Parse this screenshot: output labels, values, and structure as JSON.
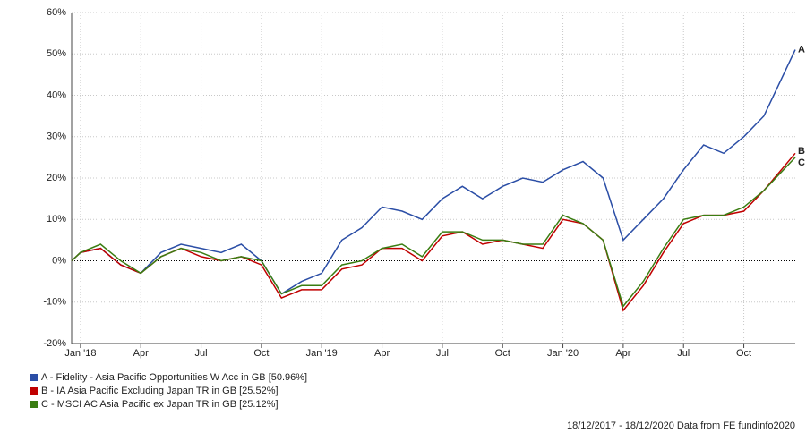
{
  "chart_data": {
    "type": "line",
    "xlim": [
      "2017-12-18",
      "2020-12-18"
    ],
    "ylim": [
      -20,
      60
    ],
    "yticks": [
      {
        "value": -20,
        "label": "-20%"
      },
      {
        "value": -10,
        "label": "-10%"
      },
      {
        "value": 0,
        "label": "0%"
      },
      {
        "value": 10,
        "label": "10%"
      },
      {
        "value": 20,
        "label": "20%"
      },
      {
        "value": 30,
        "label": "30%"
      },
      {
        "value": 40,
        "label": "40%"
      },
      {
        "value": 50,
        "label": "50%"
      },
      {
        "value": 60,
        "label": "60%"
      }
    ],
    "xticks": [
      {
        "value": "2018-01",
        "label": "Jan '18"
      },
      {
        "value": "2018-04",
        "label": "Apr"
      },
      {
        "value": "2018-07",
        "label": "Jul"
      },
      {
        "value": "2018-10",
        "label": "Oct"
      },
      {
        "value": "2019-01",
        "label": "Jan '19"
      },
      {
        "value": "2019-04",
        "label": "Apr"
      },
      {
        "value": "2019-07",
        "label": "Jul"
      },
      {
        "value": "2019-10",
        "label": "Oct"
      },
      {
        "value": "2020-01",
        "label": "Jan '20"
      },
      {
        "value": "2020-04",
        "label": "Apr"
      },
      {
        "value": "2020-07",
        "label": "Jul"
      },
      {
        "value": "2020-10",
        "label": "Oct"
      }
    ],
    "grid": true,
    "x": [
      "2017-12-18",
      "2018-01",
      "2018-02",
      "2018-03",
      "2018-04",
      "2018-05",
      "2018-06",
      "2018-07",
      "2018-08",
      "2018-09",
      "2018-10",
      "2018-11",
      "2018-12",
      "2019-01",
      "2019-02",
      "2019-03",
      "2019-04",
      "2019-05",
      "2019-06",
      "2019-07",
      "2019-08",
      "2019-09",
      "2019-10",
      "2019-11",
      "2019-12",
      "2020-01",
      "2020-02",
      "2020-03",
      "2020-04",
      "2020-05",
      "2020-06",
      "2020-07",
      "2020-08",
      "2020-09",
      "2020-10",
      "2020-11",
      "2020-12-18"
    ],
    "series": [
      {
        "name": "A - Fidelity - Asia Pacific Opportunities W Acc in GB [50.96%]",
        "marker": "A",
        "color": "#2b4ea6",
        "values": [
          0,
          2,
          3,
          -1,
          -3,
          2,
          4,
          3,
          2,
          4,
          0,
          -8,
          -5,
          -3,
          5,
          8,
          13,
          12,
          10,
          15,
          18,
          15,
          18,
          20,
          19,
          22,
          24,
          20,
          5,
          10,
          15,
          22,
          28,
          26,
          30,
          35,
          51
        ]
      },
      {
        "name": "B - IA Asia Pacific Excluding Japan TR in GB [25.52%]",
        "marker": "B",
        "color": "#c00000",
        "values": [
          0,
          2,
          3,
          -1,
          -3,
          1,
          3,
          1,
          0,
          1,
          -1,
          -9,
          -7,
          -7,
          -2,
          -1,
          3,
          3,
          0,
          6,
          7,
          4,
          5,
          4,
          3,
          10,
          9,
          5,
          -12,
          -6,
          2,
          9,
          11,
          11,
          12,
          17,
          26
        ]
      },
      {
        "name": "C - MSCI AC Asia Pacific ex Japan TR in GB [25.12%]",
        "marker": "C",
        "color": "#3a7d12",
        "values": [
          0,
          2,
          4,
          0,
          -3,
          1,
          3,
          2,
          0,
          1,
          0,
          -8,
          -6,
          -6,
          -1,
          0,
          3,
          4,
          1,
          7,
          7,
          5,
          5,
          4,
          4,
          11,
          9,
          5,
          -11,
          -5,
          3,
          10,
          11,
          11,
          13,
          17,
          25
        ]
      }
    ],
    "footer": "18/12/2017 - 18/12/2020 Data from FE fundinfo2020"
  }
}
